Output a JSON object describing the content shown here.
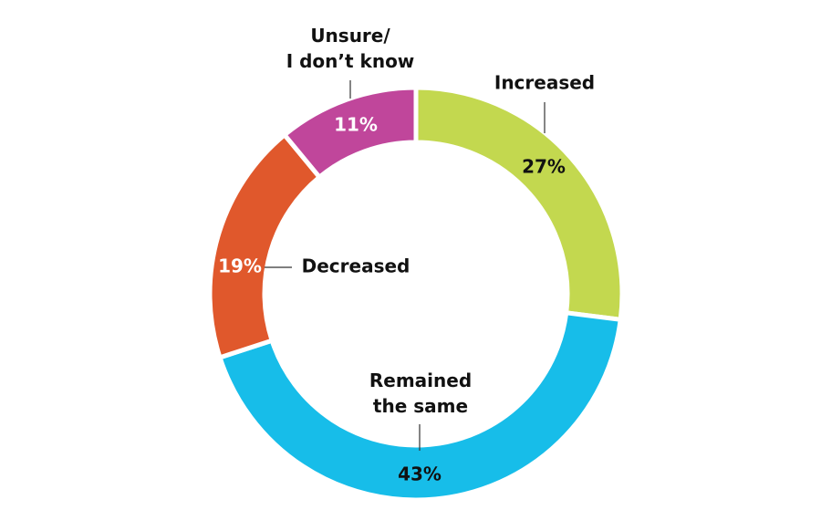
{
  "chart_data": {
    "type": "pie",
    "donut": true,
    "categories": [
      "Increased",
      "Remained\nthe same",
      "Decreased",
      "Unsure/\nI don’t know"
    ],
    "values": [
      27,
      43,
      19,
      11
    ],
    "value_labels": [
      "27%",
      "43%",
      "19%",
      "11%"
    ],
    "colors": [
      "#c3d84f",
      "#17bde9",
      "#e0582c",
      "#c0469b"
    ]
  }
}
